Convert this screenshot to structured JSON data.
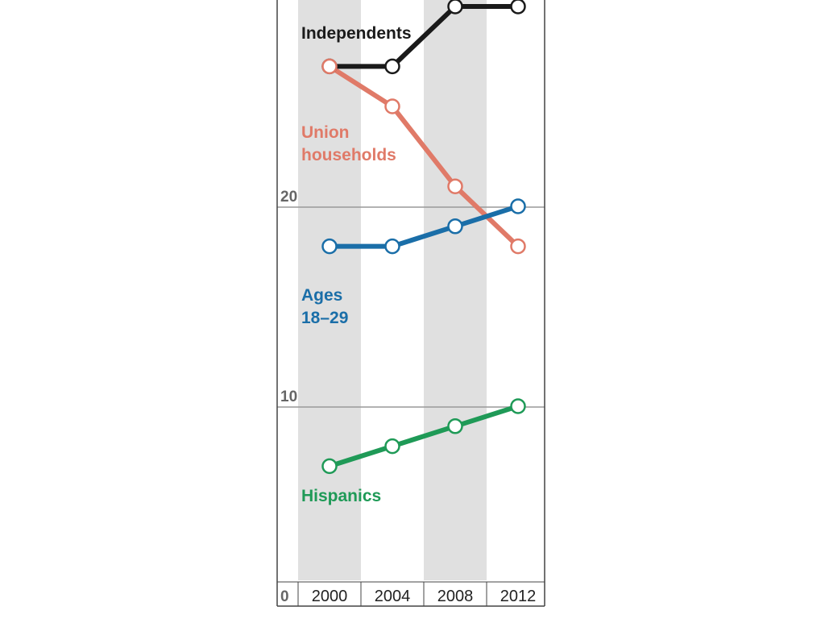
{
  "colors": {
    "band": "#e0e0e0",
    "grid": "#999999",
    "axis": "#444444"
  },
  "chart_data": {
    "type": "line",
    "x": [
      "2000",
      "2004",
      "2008",
      "2012"
    ],
    "ylim": [
      0,
      30
    ],
    "y_ticks": [
      "0",
      "10",
      "20"
    ],
    "grid": true,
    "series": [
      {
        "name": "Independents",
        "label_lines": [
          "Independents"
        ],
        "color": "#1a1a1a",
        "values": [
          27,
          27,
          30,
          30
        ]
      },
      {
        "name": "Union households",
        "label_lines": [
          "Union",
          "households"
        ],
        "color": "#e07a68",
        "values": [
          27,
          25,
          21,
          18
        ]
      },
      {
        "name": "Ages 18–29",
        "label_lines": [
          "Ages",
          "18–29"
        ],
        "color": "#1a6ea8",
        "values": [
          18,
          18,
          19,
          20
        ]
      },
      {
        "name": "Hispanics",
        "label_lines": [
          "Hispanics"
        ],
        "color": "#1f9a57",
        "values": [
          7,
          8,
          9,
          10
        ]
      }
    ]
  }
}
